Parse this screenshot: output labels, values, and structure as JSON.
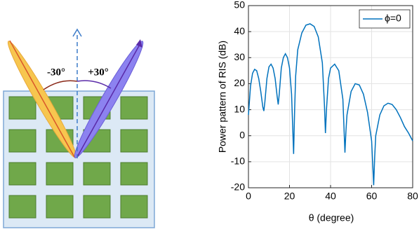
{
  "diagram": {
    "labels": [
      "-30°",
      "+30°"
    ]
  },
  "chart_data": {
    "type": "line",
    "xlabel": "θ (degree)",
    "ylabel": "Power pattern of RIS (dB)",
    "x": [
      0,
      1,
      2,
      3,
      4,
      5,
      6,
      7,
      7.5,
      8,
      9,
      10,
      11,
      12,
      13,
      14,
      14.5,
      15,
      16,
      17,
      18,
      19,
      20,
      21,
      22,
      22.5,
      23,
      24,
      26,
      28,
      30,
      32,
      34,
      36,
      37,
      37.5,
      38,
      39,
      40,
      42,
      44,
      46,
      47,
      47.5,
      48,
      50,
      52,
      54,
      56,
      58,
      60,
      61,
      61.5,
      62,
      64,
      66,
      68,
      70,
      72,
      74,
      76,
      78,
      80
    ],
    "series": [
      {
        "name": "ϕ=0",
        "color": "#0072bd",
        "values": [
          8,
          19,
          24,
          25.5,
          25,
          22,
          17,
          11,
          9.5,
          13,
          22,
          26.5,
          27.5,
          26,
          22,
          15,
          12,
          16,
          26,
          30,
          31.5,
          30,
          26,
          16,
          -7,
          10,
          23,
          33,
          39.5,
          42.5,
          43,
          42,
          38,
          28,
          12,
          1,
          10,
          22,
          26,
          27.5,
          25,
          14,
          -6.5,
          2,
          8,
          17,
          20,
          19.5,
          16,
          9,
          -2,
          -19,
          -8,
          0,
          8,
          11.5,
          12.5,
          12,
          10,
          7,
          3.5,
          1,
          -2
        ]
      }
    ],
    "xlim": [
      0,
      80
    ],
    "xticks": [
      0,
      20,
      40,
      60,
      80
    ],
    "ylim": [
      -20,
      50
    ],
    "yticks": [
      -20,
      -10,
      0,
      10,
      20,
      30,
      40,
      50
    ],
    "grid": true,
    "legend": "upper right"
  }
}
